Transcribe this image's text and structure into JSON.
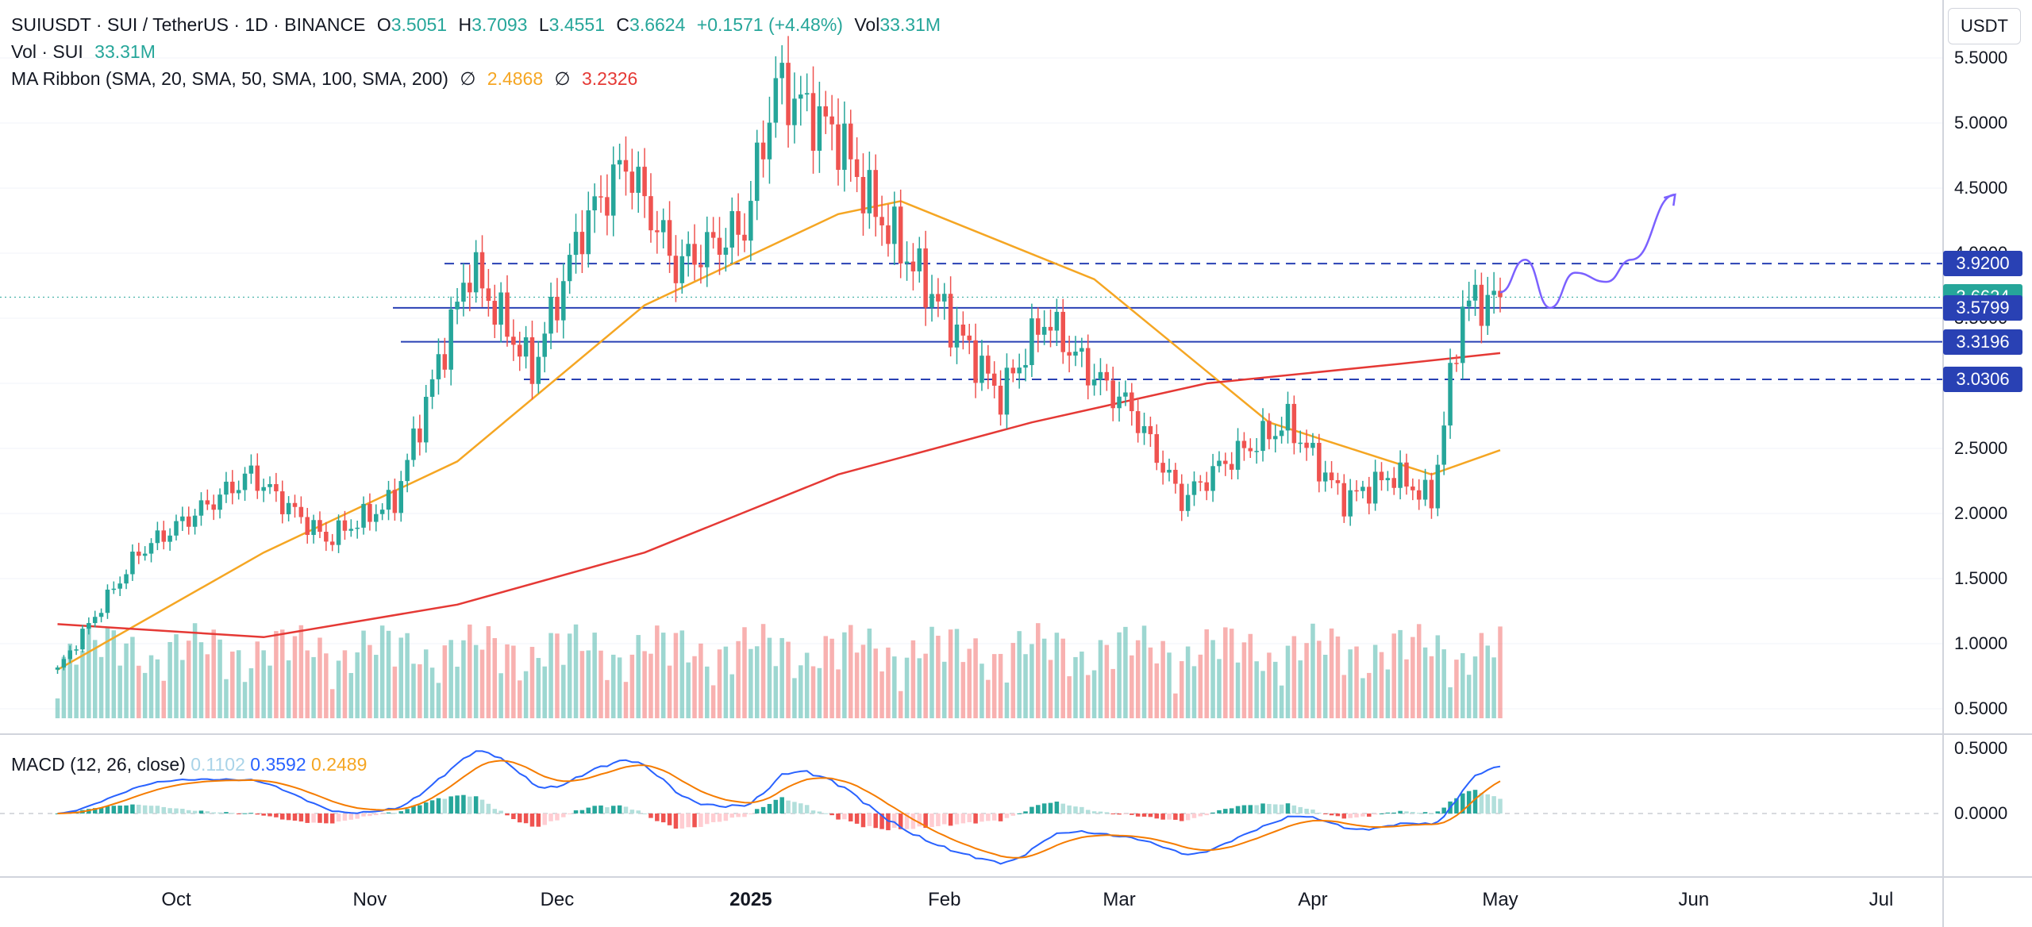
{
  "header": {
    "symbol_line": "SUIUSDT · SUI / TetherUS · 1D · BINANCE",
    "open_label": "O",
    "open": "3.5051",
    "high_label": "H",
    "high": "3.7093",
    "low_label": "L",
    "low": "3.4551",
    "close_label": "C",
    "close": "3.6624",
    "change": "+0.1571 (+4.48%)",
    "vol_label": "Vol",
    "vol": "33.31M"
  },
  "volume_legend": {
    "label": "Vol · SUI",
    "value": "33.31M"
  },
  "ma_legend": {
    "label": "MA Ribbon (SMA, 20, SMA, 50, SMA, 100, SMA, 200)",
    "icon": "∅",
    "value1": "2.4868",
    "value2": "3.2326"
  },
  "macd_legend": {
    "label": "MACD (12, 26, close)",
    "hist": "0.1102",
    "macd": "0.3592",
    "signal": "0.2489"
  },
  "currency": "USDT",
  "price_axis": [
    "5.5000",
    "5.0000",
    "4.5000",
    "4.0000",
    "3.5000",
    "3.0000",
    "2.5000",
    "2.0000",
    "1.5000",
    "1.0000",
    "0.5000"
  ],
  "macd_axis": [
    "0.5000",
    "0.0000"
  ],
  "price_tags": [
    {
      "value": "3.9200",
      "color": "#2941b4"
    },
    {
      "value": "3.6624",
      "color": "#26a69a"
    },
    {
      "value": "3.5799",
      "color": "#2941b4"
    },
    {
      "value": "3.3196",
      "color": "#2941b4"
    },
    {
      "value": "3.0306",
      "color": "#2941b4"
    }
  ],
  "time_axis": [
    {
      "label": "Oct",
      "bold": false
    },
    {
      "label": "Nov",
      "bold": false
    },
    {
      "label": "Dec",
      "bold": false
    },
    {
      "label": "2025",
      "bold": true
    },
    {
      "label": "Feb",
      "bold": false
    },
    {
      "label": "Mar",
      "bold": false
    },
    {
      "label": "Apr",
      "bold": false
    },
    {
      "label": "May",
      "bold": false
    },
    {
      "label": "Jun",
      "bold": false
    },
    {
      "label": "Jul",
      "bold": false
    }
  ],
  "colors": {
    "up": "#26a69a",
    "down": "#ef5350",
    "ma50": "#f5a623",
    "ma200": "#e53935",
    "level": "#2941b4",
    "macd": "#2962ff",
    "signal": "#f57c00",
    "drawing": "#7b61ff"
  },
  "chart_data": {
    "type": "candlestick",
    "symbol": "SUIUSDT",
    "interval": "1D",
    "y_range": [
      0.3,
      5.6
    ],
    "start_date": "2024-09-12",
    "end_date": "2025-05-01",
    "series": [
      {
        "name": "SUIUSDT",
        "type": "candlestick",
        "keypoints": [
          [
            "2024-09-12",
            0.8
          ],
          [
            "2024-09-25",
            1.7
          ],
          [
            "2024-10-13",
            2.3
          ],
          [
            "2024-10-25",
            1.8
          ],
          [
            "2024-11-05",
            2.1
          ],
          [
            "2024-11-17",
            3.9
          ],
          [
            "2024-11-27",
            3.1
          ],
          [
            "2024-12-05",
            4.2
          ],
          [
            "2024-12-12",
            4.7
          ],
          [
            "2024-12-20",
            3.9
          ],
          [
            "2024-12-31",
            4.2
          ],
          [
            "2025-01-05",
            5.3
          ],
          [
            "2025-01-15",
            4.9
          ],
          [
            "2025-01-20",
            4.4
          ],
          [
            "2025-01-27",
            3.9
          ],
          [
            "2025-02-03",
            3.4
          ],
          [
            "2025-02-10",
            2.9
          ],
          [
            "2025-02-17",
            3.5
          ],
          [
            "2025-02-24",
            3.1
          ],
          [
            "2025-03-03",
            2.8
          ],
          [
            "2025-03-11",
            2.1
          ],
          [
            "2025-03-18",
            2.4
          ],
          [
            "2025-03-28",
            2.7
          ],
          [
            "2025-04-06",
            2.1
          ],
          [
            "2025-04-14",
            2.3
          ],
          [
            "2025-04-20",
            2.1
          ],
          [
            "2025-04-25",
            3.6
          ],
          [
            "2025-05-01",
            3.6624
          ]
        ]
      },
      {
        "name": "MA 50",
        "type": "line",
        "points": [
          [
            "2024-09-12",
            0.8
          ],
          [
            "2024-10-15",
            1.7
          ],
          [
            "2024-11-15",
            2.4
          ],
          [
            "2024-12-15",
            3.6
          ],
          [
            "2025-01-15",
            4.3
          ],
          [
            "2025-01-25",
            4.4
          ],
          [
            "2025-02-25",
            3.8
          ],
          [
            "2025-03-25",
            2.7
          ],
          [
            "2025-04-20",
            2.3
          ],
          [
            "2025-05-01",
            2.4868
          ]
        ]
      },
      {
        "name": "MA 200",
        "type": "line",
        "points": [
          [
            "2024-09-12",
            1.15
          ],
          [
            "2024-10-15",
            1.05
          ],
          [
            "2024-11-15",
            1.3
          ],
          [
            "2024-12-15",
            1.7
          ],
          [
            "2025-01-15",
            2.3
          ],
          [
            "2025-02-15",
            2.7
          ],
          [
            "2025-03-15",
            3.0
          ],
          [
            "2025-04-15",
            3.15
          ],
          [
            "2025-05-01",
            3.2326
          ]
        ]
      }
    ],
    "levels": [
      {
        "price": 3.92,
        "style": "dashed"
      },
      {
        "price": 3.5799,
        "style": "solid"
      },
      {
        "price": 3.3196,
        "style": "solid"
      },
      {
        "price": 3.0306,
        "style": "dashed"
      }
    ],
    "projection": [
      [
        "2025-05-01",
        3.7
      ],
      [
        "2025-05-05",
        3.95
      ],
      [
        "2025-05-09",
        3.58
      ],
      [
        "2025-05-13",
        3.85
      ],
      [
        "2025-05-18",
        3.78
      ],
      [
        "2025-05-22",
        3.95
      ],
      [
        "2025-05-29",
        4.45
      ]
    ],
    "macd": {
      "params": [
        12,
        26
      ],
      "range": [
        -0.45,
        0.55
      ],
      "last": {
        "histogram": 0.1102,
        "macd": 0.3592,
        "signal": 0.2489
      }
    }
  }
}
